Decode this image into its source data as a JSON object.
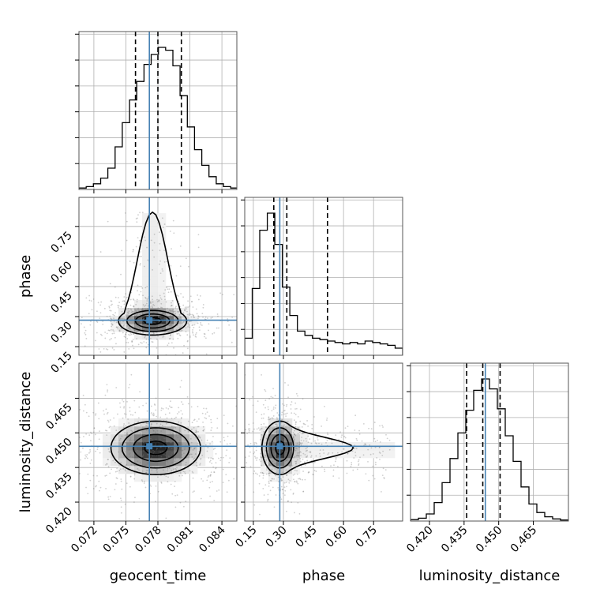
{
  "chart_data": {
    "type": "corner",
    "parameters": [
      "geocent_time",
      "phase",
      "luminosity_distance"
    ],
    "axis_labels": {
      "geocent_time": "geocent_time",
      "phase": "phase",
      "luminosity_distance": "luminosity_distance"
    },
    "ranges": {
      "geocent_time": [
        0.0706,
        0.0854
      ],
      "phase": [
        0.107,
        0.895
      ],
      "luminosity_distance": [
        0.4118,
        0.4802
      ]
    },
    "ticks": {
      "geocent_time": [
        0.072,
        0.075,
        0.078,
        0.081,
        0.084
      ],
      "phase": [
        0.15,
        0.3,
        0.45,
        0.6,
        0.75
      ],
      "luminosity_distance": [
        0.42,
        0.435,
        0.45,
        0.465
      ]
    },
    "tick_labels": {
      "geocent_time": [
        "0.072",
        "0.075",
        "0.078",
        "0.081",
        "0.084"
      ],
      "phase": [
        "0.15",
        "0.30",
        "0.45",
        "0.60",
        "0.75"
      ],
      "luminosity_distance": [
        "0.420",
        "0.435",
        "0.450",
        "0.465"
      ]
    },
    "truths": {
      "geocent_time": 0.0772,
      "phase": 0.282,
      "luminosity_distance": 0.4442
    },
    "quantiles": {
      "geocent_time": [
        0.0759,
        0.078,
        0.0802
      ],
      "phase": [
        0.252,
        0.317,
        0.52
      ],
      "luminosity_distance": [
        0.4361,
        0.4431,
        0.4506
      ]
    },
    "histograms": {
      "geocent_time": {
        "bins": [
          0.0706,
          0.0855
        ],
        "counts": [
          0.01,
          0.02,
          0.04,
          0.08,
          0.15,
          0.3,
          0.47,
          0.63,
          0.76,
          0.88,
          0.95,
          1.0,
          0.98,
          0.87,
          0.66,
          0.44,
          0.28,
          0.17,
          0.09,
          0.04,
          0.02,
          0.01
        ]
      },
      "phase": {
        "bins": [
          0.107,
          0.895
        ],
        "counts": [
          0.12,
          0.47,
          0.88,
          1.0,
          0.78,
          0.48,
          0.28,
          0.17,
          0.14,
          0.12,
          0.11,
          0.1,
          0.09,
          0.08,
          0.09,
          0.08,
          0.1,
          0.09,
          0.08,
          0.07,
          0.05
        ]
      },
      "luminosity_distance": {
        "bins": [
          0.4118,
          0.4802
        ],
        "counts": [
          0.01,
          0.02,
          0.05,
          0.13,
          0.27,
          0.44,
          0.62,
          0.78,
          0.92,
          1.0,
          0.93,
          0.79,
          0.6,
          0.42,
          0.24,
          0.12,
          0.06,
          0.03,
          0.015,
          0.007
        ]
      }
    },
    "densities_2d": [
      {
        "x": "geocent_time",
        "y": "phase",
        "center": [
          0.0775,
          0.278
        ],
        "core_spread": [
          0.0016,
          0.035
        ],
        "tail": {
          "x_center": 0.0775,
          "x_spread": 0.0011,
          "y_start": 0.28,
          "y_end": 0.82
        }
      },
      {
        "x": "geocent_time",
        "y": "luminosity_distance",
        "center": [
          0.0778,
          0.4435
        ],
        "core_spread": [
          0.0021,
          0.0058
        ]
      },
      {
        "x": "phase",
        "y": "luminosity_distance",
        "center": [
          0.283,
          0.4435
        ],
        "core_spread": [
          0.045,
          0.0058
        ],
        "tail": {
          "x_start": 0.3,
          "x_end": 0.84,
          "y_center": 0.4435,
          "y_spread": 0.0042
        }
      }
    ],
    "grid": true
  }
}
